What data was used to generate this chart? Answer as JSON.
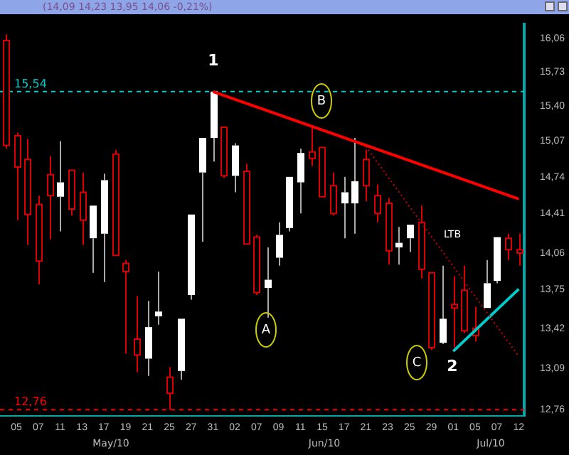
{
  "chart_data": {
    "type": "candlestick",
    "title": "(14,09 14,23 13,95 14,06 -0,21%)",
    "categories": [
      null,
      "05",
      null,
      "07",
      null,
      "11",
      null,
      "13",
      null,
      "17",
      null,
      "19",
      null,
      "21",
      null,
      "25",
      null,
      "27",
      null,
      "31",
      null,
      "02",
      null,
      "07",
      null,
      "09",
      null,
      "11",
      null,
      "15",
      null,
      "17",
      null,
      "21",
      null,
      "23",
      null,
      "25",
      null,
      "29",
      null,
      "01",
      null,
      "05",
      null,
      "07",
      null,
      "12"
    ],
    "ohlc": [
      [
        16.04,
        16.1,
        15.0,
        15.03
      ],
      [
        15.12,
        15.15,
        14.35,
        14.83
      ],
      [
        14.9,
        15.09,
        14.13,
        14.4
      ],
      [
        14.49,
        14.57,
        13.79,
        13.99
      ],
      [
        14.76,
        14.93,
        14.18,
        14.57
      ],
      [
        14.56,
        15.07,
        14.25,
        14.69
      ],
      [
        14.8,
        14.8,
        14.39,
        14.45
      ],
      [
        14.6,
        14.78,
        14.13,
        14.35
      ],
      [
        14.19,
        14.48,
        13.89,
        14.48
      ],
      [
        14.23,
        14.77,
        13.81,
        14.71
      ],
      [
        14.95,
        14.99,
        14.04,
        14.04
      ],
      [
        13.97,
        14.0,
        13.21,
        13.9
      ],
      [
        13.33,
        13.69,
        13.06,
        13.2
      ],
      [
        13.17,
        13.65,
        13.03,
        13.43
      ],
      [
        13.52,
        13.9,
        13.45,
        13.56
      ],
      [
        13.02,
        13.1,
        12.76,
        12.89
      ],
      [
        13.07,
        13.5,
        13.0,
        13.5
      ],
      [
        13.7,
        14.4,
        13.66,
        14.4
      ],
      [
        14.78,
        15.1,
        14.16,
        15.1
      ],
      [
        15.1,
        15.54,
        14.88,
        15.54
      ],
      [
        15.2,
        15.2,
        14.73,
        14.75
      ],
      [
        14.75,
        15.05,
        14.6,
        15.03
      ],
      [
        14.79,
        14.86,
        14.14,
        14.14
      ],
      [
        14.2,
        14.22,
        13.7,
        13.72
      ],
      [
        13.76,
        14.11,
        13.51,
        13.83
      ],
      [
        14.02,
        14.33,
        13.95,
        14.22
      ],
      [
        14.28,
        14.74,
        14.25,
        14.74
      ],
      [
        14.69,
        15.0,
        14.41,
        14.96
      ],
      [
        14.97,
        15.21,
        14.84,
        14.91
      ],
      [
        15.01,
        15.01,
        14.56,
        14.56
      ],
      [
        14.66,
        14.78,
        14.39,
        14.41
      ],
      [
        14.5,
        14.74,
        14.19,
        14.6
      ],
      [
        14.5,
        15.1,
        14.23,
        14.7
      ],
      [
        14.9,
        14.99,
        14.52,
        14.66
      ],
      [
        14.57,
        14.67,
        14.33,
        14.41
      ],
      [
        14.5,
        14.55,
        13.96,
        14.08
      ],
      [
        14.11,
        14.29,
        13.96,
        14.15
      ],
      [
        14.19,
        14.31,
        14.07,
        14.31
      ],
      [
        14.33,
        14.48,
        13.84,
        13.92
      ],
      [
        13.89,
        13.89,
        13.24,
        13.26
      ],
      [
        13.3,
        13.95,
        13.29,
        13.5
      ],
      [
        13.62,
        13.86,
        13.26,
        13.59
      ],
      [
        13.74,
        13.95,
        13.38,
        13.4
      ],
      [
        13.42,
        13.6,
        13.31,
        13.36
      ],
      [
        13.59,
        14.0,
        13.59,
        13.8
      ],
      [
        13.82,
        14.2,
        13.8,
        14.2
      ],
      [
        14.19,
        14.23,
        14.0,
        14.09
      ],
      [
        14.09,
        14.23,
        13.95,
        14.06
      ]
    ],
    "series": [
      {
        "type": "line",
        "color": "#ff0000",
        "values": [
          null,
          null,
          null,
          null,
          null,
          null,
          null,
          null,
          null,
          null,
          null,
          null,
          null,
          null,
          null,
          null,
          null,
          null,
          null,
          15.54,
          null,
          null,
          null,
          null,
          null,
          null,
          null,
          null,
          null,
          null,
          null,
          null,
          null,
          null,
          null,
          null,
          null,
          null,
          null,
          null,
          null,
          null,
          null,
          null,
          null,
          null,
          null,
          14.54
        ]
      },
      {
        "type": "line",
        "color": "#cc0000",
        "line_style": "dotted",
        "values": [
          null,
          null,
          null,
          null,
          null,
          null,
          null,
          null,
          null,
          null,
          null,
          null,
          null,
          null,
          null,
          null,
          null,
          null,
          null,
          null,
          null,
          null,
          null,
          null,
          null,
          null,
          null,
          null,
          null,
          null,
          null,
          null,
          null,
          15.02,
          null,
          null,
          null,
          null,
          null,
          null,
          null,
          null,
          null,
          null,
          null,
          null,
          null,
          13.19
        ]
      },
      {
        "type": "line",
        "color": "#00cccc",
        "values": [
          null,
          null,
          null,
          null,
          null,
          null,
          null,
          null,
          null,
          null,
          null,
          null,
          null,
          null,
          null,
          null,
          null,
          null,
          null,
          null,
          null,
          null,
          null,
          null,
          null,
          null,
          null,
          null,
          null,
          null,
          null,
          null,
          null,
          null,
          null,
          null,
          null,
          null,
          null,
          null,
          null,
          13.23,
          null,
          null,
          null,
          null,
          null,
          13.75
        ]
      }
    ],
    "ylim": [
      12.71,
      16.2
    ],
    "log": true,
    "yticks": [
      {
        "value": 16.06,
        "label": "16,06"
      },
      {
        "value": 15.73,
        "label": "15,73"
      },
      {
        "value": 15.4,
        "label": "15,40"
      },
      {
        "value": 15.07,
        "label": "15,07"
      },
      {
        "value": 14.74,
        "label": "14,74"
      },
      {
        "value": 14.41,
        "label": "14,41"
      },
      {
        "value": 14.06,
        "label": "14,06"
      },
      {
        "value": 13.75,
        "label": "13,75"
      },
      {
        "value": 13.42,
        "label": "13,42"
      },
      {
        "value": 13.09,
        "label": "13,09"
      },
      {
        "value": 12.76,
        "label": "12,76"
      }
    ],
    "ref_lines": [
      {
        "axis": "y",
        "value": 15.54,
        "label": "15,54",
        "color": "#00cccc",
        "line_style": "dashed"
      },
      {
        "axis": "y",
        "value": 12.76,
        "label": "12,76",
        "color": "#ff0000",
        "line_style": "dashed"
      }
    ],
    "annotations": [
      "1",
      "2",
      "A",
      "B",
      "C",
      "LTB",
      "May/10",
      "Jun/10",
      "Jul/10"
    ],
    "legend": false,
    "grid": false
  }
}
